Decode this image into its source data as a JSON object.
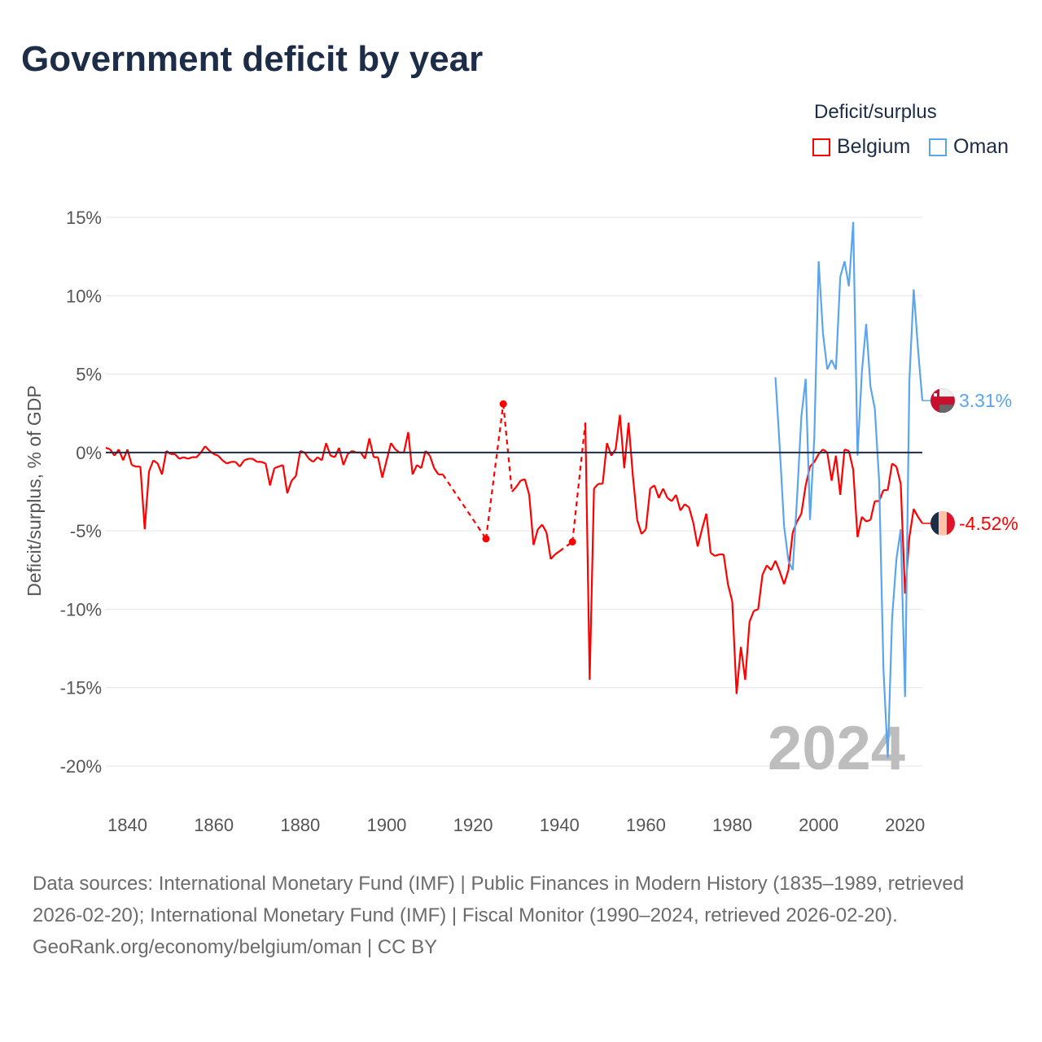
{
  "title": "Government deficit by year",
  "legend": {
    "title": "Deficit/surplus",
    "items": [
      {
        "label": "Belgium",
        "color": "#ff0000"
      },
      {
        "label": "Oman",
        "color": "#5aa5ec"
      }
    ]
  },
  "footer": {
    "sources": "Data sources: International Monetary Fund (IMF) | Public Finances in Modern History (1835–1989, retrieved 2026-02-20); International Monetary Fund (IMF) | Fiscal Monitor (1990–2024, retrieved 2026-02-20).",
    "credit": "GeoRank.org/economy/belgium/oman | CC BY"
  },
  "chart_data": {
    "type": "line",
    "title": "Government deficit by year",
    "xlabel": "",
    "ylabel": "Deficit/surplus, % of GDP",
    "xlim": [
      1835,
      2024
    ],
    "ylim": [
      -20,
      15
    ],
    "x_ticks": [
      1840,
      1860,
      1880,
      1900,
      1920,
      1940,
      1960,
      1980,
      2000,
      2020
    ],
    "y_ticks": [
      15,
      10,
      5,
      0,
      -5,
      -10,
      -15,
      -20
    ],
    "y_tick_labels": [
      "15%",
      "10%",
      "5%",
      "0%",
      "-5%",
      "-10%",
      "-15%",
      "-20%"
    ],
    "grid": true,
    "legend_position": "top-right",
    "year_watermark": "2024",
    "series": [
      {
        "name": "Belgium",
        "color": "#ff0000",
        "end_label": "-4.52%",
        "points": [
          [
            1835,
            0.3
          ],
          [
            1836,
            0.2
          ],
          [
            1837,
            -0.2
          ],
          [
            1838,
            0.2
          ],
          [
            1839,
            -0.5
          ],
          [
            1840,
            0.2
          ],
          [
            1841,
            -0.8
          ],
          [
            1842,
            -0.9
          ],
          [
            1843,
            -0.9
          ],
          [
            1844,
            -4.9
          ],
          [
            1845,
            -1.2
          ],
          [
            1846,
            -0.5
          ],
          [
            1847,
            -0.7
          ],
          [
            1848,
            -1.4
          ],
          [
            1849,
            0.1
          ],
          [
            1850,
            -0.1
          ],
          [
            1851,
            -0.1
          ],
          [
            1852,
            -0.4
          ],
          [
            1853,
            -0.3
          ],
          [
            1854,
            -0.4
          ],
          [
            1855,
            -0.3
          ],
          [
            1856,
            -0.3
          ],
          [
            1857,
            0.0
          ],
          [
            1858,
            0.4
          ],
          [
            1859,
            0.1
          ],
          [
            1860,
            -0.1
          ],
          [
            1861,
            -0.2
          ],
          [
            1862,
            -0.5
          ],
          [
            1863,
            -0.7
          ],
          [
            1864,
            -0.6
          ],
          [
            1865,
            -0.6
          ],
          [
            1866,
            -0.9
          ],
          [
            1867,
            -0.5
          ],
          [
            1868,
            -0.4
          ],
          [
            1869,
            -0.4
          ],
          [
            1870,
            -0.6
          ],
          [
            1871,
            -0.6
          ],
          [
            1872,
            -0.7
          ],
          [
            1873,
            -2.1
          ],
          [
            1874,
            -1.0
          ],
          [
            1875,
            -0.9
          ],
          [
            1876,
            -0.8
          ],
          [
            1877,
            -2.6
          ],
          [
            1878,
            -1.8
          ],
          [
            1879,
            -1.5
          ],
          [
            1880,
            0.1
          ],
          [
            1881,
            0.0
          ],
          [
            1882,
            -0.4
          ],
          [
            1883,
            -0.6
          ],
          [
            1884,
            -0.3
          ],
          [
            1885,
            -0.5
          ],
          [
            1886,
            0.6
          ],
          [
            1887,
            -0.2
          ],
          [
            1888,
            -0.3
          ],
          [
            1889,
            0.3
          ],
          [
            1890,
            -0.8
          ],
          [
            1891,
            -0.1
          ],
          [
            1892,
            0.1
          ],
          [
            1893,
            0.0
          ],
          [
            1894,
            0.0
          ],
          [
            1895,
            -0.4
          ],
          [
            1896,
            0.9
          ],
          [
            1897,
            -0.3
          ],
          [
            1898,
            -0.3
          ],
          [
            1899,
            -1.6
          ],
          [
            1900,
            -0.5
          ],
          [
            1901,
            0.6
          ],
          [
            1902,
            0.2
          ],
          [
            1903,
            0.0
          ],
          [
            1904,
            0.0
          ],
          [
            1905,
            1.3
          ],
          [
            1906,
            -1.4
          ],
          [
            1907,
            -0.8
          ],
          [
            1908,
            -1.0
          ],
          [
            1909,
            0.1
          ],
          [
            1910,
            -0.2
          ],
          [
            1911,
            -1.0
          ],
          [
            1912,
            -1.4
          ],
          [
            1913,
            -1.4
          ],
          [
            1923,
            -5.5
          ],
          [
            1927,
            3.1
          ],
          [
            1929,
            -2.5
          ],
          [
            1930,
            -2.2
          ],
          [
            1931,
            -1.8
          ],
          [
            1932,
            -1.7
          ],
          [
            1933,
            -2.7
          ],
          [
            1934,
            -5.9
          ],
          [
            1935,
            -4.9
          ],
          [
            1936,
            -4.6
          ],
          [
            1937,
            -5.1
          ],
          [
            1938,
            -6.8
          ],
          [
            1939,
            -6.5
          ],
          [
            1940,
            -6.3
          ],
          [
            1943,
            -5.7
          ],
          [
            1946,
            1.9
          ],
          [
            1947,
            -14.5
          ],
          [
            1948,
            -2.3
          ],
          [
            1949,
            -2.0
          ],
          [
            1950,
            -2.0
          ],
          [
            1951,
            0.6
          ],
          [
            1952,
            -0.2
          ],
          [
            1953,
            0.2
          ],
          [
            1954,
            2.4
          ],
          [
            1955,
            -1.0
          ],
          [
            1956,
            1.9
          ],
          [
            1957,
            -1.5
          ],
          [
            1958,
            -4.3
          ],
          [
            1959,
            -5.2
          ],
          [
            1960,
            -4.9
          ],
          [
            1961,
            -2.3
          ],
          [
            1962,
            -2.1
          ],
          [
            1963,
            -2.9
          ],
          [
            1964,
            -2.3
          ],
          [
            1965,
            -2.9
          ],
          [
            1966,
            -3.1
          ],
          [
            1967,
            -2.7
          ],
          [
            1968,
            -3.7
          ],
          [
            1969,
            -3.3
          ],
          [
            1970,
            -3.5
          ],
          [
            1971,
            -4.5
          ],
          [
            1972,
            -6.0
          ],
          [
            1973,
            -4.9
          ],
          [
            1974,
            -3.9
          ],
          [
            1975,
            -6.4
          ],
          [
            1976,
            -6.6
          ],
          [
            1977,
            -6.5
          ],
          [
            1978,
            -6.5
          ],
          [
            1979,
            -8.4
          ],
          [
            1980,
            -9.5
          ],
          [
            1981,
            -15.4
          ],
          [
            1982,
            -12.4
          ],
          [
            1983,
            -14.5
          ],
          [
            1984,
            -10.8
          ],
          [
            1985,
            -10.1
          ],
          [
            1986,
            -10.0
          ],
          [
            1987,
            -7.8
          ],
          [
            1988,
            -7.2
          ],
          [
            1989,
            -7.5
          ],
          [
            1990,
            -6.9
          ],
          [
            1991,
            -7.6
          ],
          [
            1992,
            -8.4
          ],
          [
            1993,
            -7.5
          ],
          [
            1994,
            -5.1
          ],
          [
            1995,
            -4.4
          ],
          [
            1996,
            -3.9
          ],
          [
            1997,
            -2.1
          ],
          [
            1998,
            -0.9
          ],
          [
            1999,
            -0.6
          ],
          [
            2000,
            -0.1
          ],
          [
            2001,
            0.2
          ],
          [
            2002,
            0.0
          ],
          [
            2003,
            -1.8
          ],
          [
            2004,
            -0.2
          ],
          [
            2005,
            -2.7
          ],
          [
            2006,
            0.2
          ],
          [
            2007,
            0.1
          ],
          [
            2008,
            -1.1
          ],
          [
            2009,
            -5.4
          ],
          [
            2010,
            -4.1
          ],
          [
            2011,
            -4.4
          ],
          [
            2012,
            -4.3
          ],
          [
            2013,
            -3.1
          ],
          [
            2014,
            -3.1
          ],
          [
            2015,
            -2.4
          ],
          [
            2016,
            -2.4
          ],
          [
            2017,
            -0.7
          ],
          [
            2018,
            -0.9
          ],
          [
            2019,
            -2.0
          ],
          [
            2020,
            -9.0
          ],
          [
            2021,
            -5.4
          ],
          [
            2022,
            -3.6
          ],
          [
            2023,
            -4.1
          ],
          [
            2024,
            -4.52
          ]
        ]
      },
      {
        "name": "Oman",
        "color": "#5aa5ec",
        "end_label": "3.31%",
        "points": [
          [
            1990,
            4.8
          ],
          [
            1991,
            0.3
          ],
          [
            1992,
            -4.7
          ],
          [
            1993,
            -6.9
          ],
          [
            1994,
            -7.5
          ],
          [
            1995,
            -2.9
          ],
          [
            1996,
            2.3
          ],
          [
            1997,
            4.7
          ],
          [
            1998,
            -4.3
          ],
          [
            1999,
            1.0
          ],
          [
            2000,
            12.2
          ],
          [
            2001,
            7.6
          ],
          [
            2002,
            5.3
          ],
          [
            2003,
            5.9
          ],
          [
            2004,
            5.3
          ],
          [
            2005,
            11.2
          ],
          [
            2006,
            12.2
          ],
          [
            2007,
            10.6
          ],
          [
            2008,
            14.7
          ],
          [
            2009,
            -0.2
          ],
          [
            2010,
            5.1
          ],
          [
            2011,
            8.2
          ],
          [
            2012,
            4.2
          ],
          [
            2013,
            2.8
          ],
          [
            2014,
            -1.8
          ],
          [
            2015,
            -13.8
          ],
          [
            2016,
            -19.5
          ],
          [
            2017,
            -10.6
          ],
          [
            2018,
            -6.8
          ],
          [
            2019,
            -4.9
          ],
          [
            2020,
            -15.6
          ],
          [
            2021,
            4.6
          ],
          [
            2022,
            10.4
          ],
          [
            2023,
            6.6
          ],
          [
            2024,
            3.31
          ]
        ]
      }
    ]
  }
}
